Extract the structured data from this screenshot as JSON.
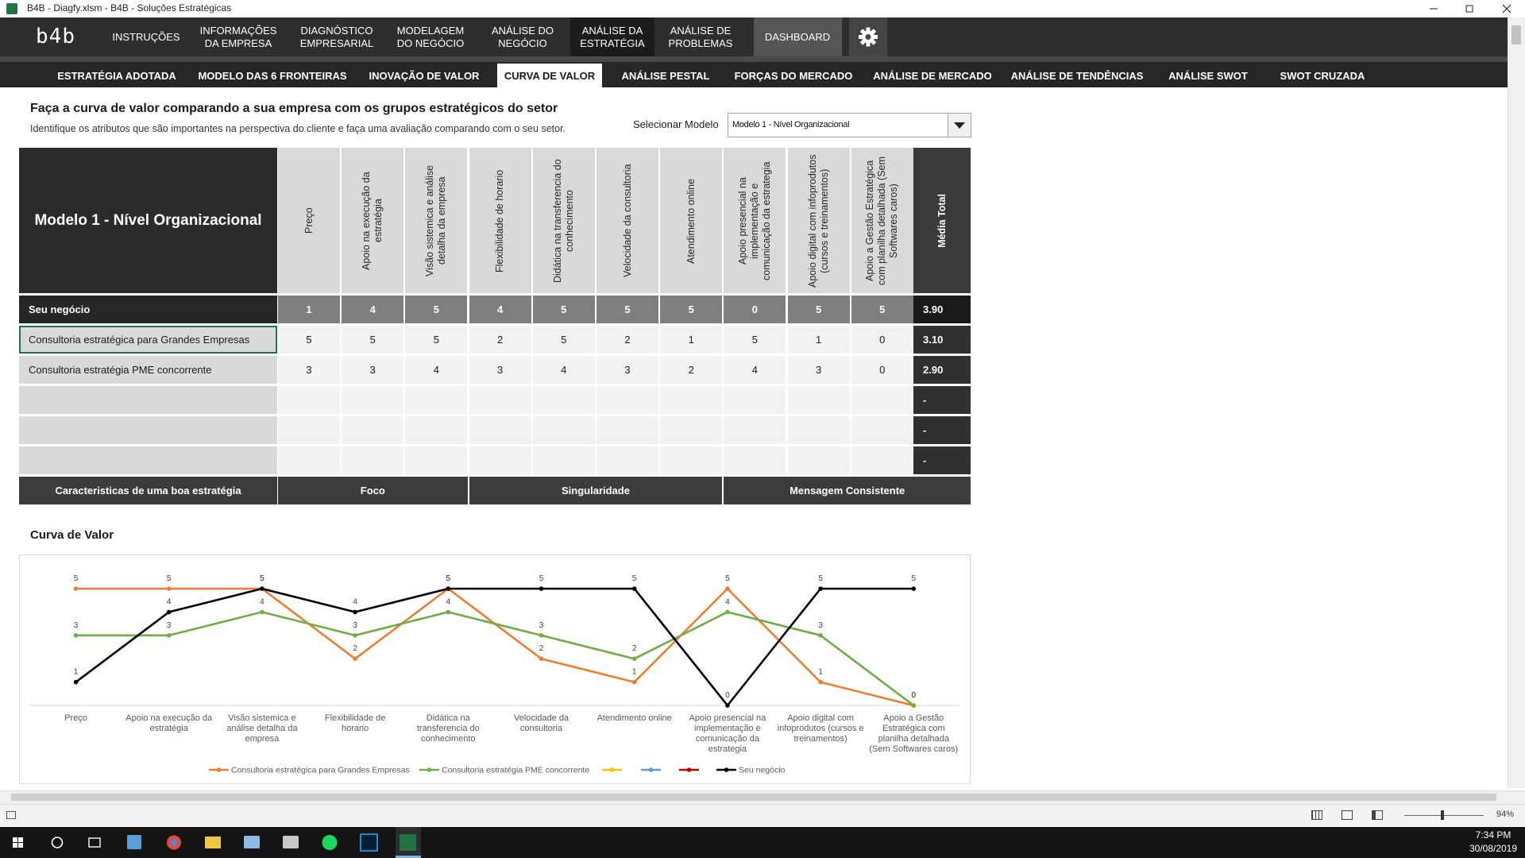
{
  "window": {
    "title": "B4B - Diagfy.xlsm - B4B - Soluções Estratégicas"
  },
  "nav": {
    "logo": "b4b",
    "items": [
      "INSTRUÇÕES",
      "INFORMAÇÕES DA EMPRESA",
      "DIAGNÓSTICO EMPRESARIAL",
      "MODELAGEM DO NEGÓCIO",
      "ANÁLISE DO NEGÓCIO",
      "ANÁLISE DA ESTRATÉGIA",
      "ANÁLISE DE PROBLEMAS",
      "DASHBOARD"
    ],
    "active": 5
  },
  "tabs": {
    "items": [
      "ESTRATÉGIA ADOTADA",
      "MODELO DAS 6 FRONTEIRAS",
      "INOVAÇÃO DE VALOR",
      "CURVA DE VALOR",
      "ANÁLISE PESTAL",
      "FORÇAS DO MERCADO",
      "ANÁLISE DE MERCADO",
      "ANÁLISE DE TENDÊNCIAS",
      "ANÁLISE SWOT",
      "SWOT CRUZADA"
    ],
    "active": 3
  },
  "header": {
    "title": "Faça a curva de valor comparando a sua empresa com os grupos estratégicos do setor",
    "subtitle": "Identifique os atributos que são importantes na perspectiva do cliente e faça uma avaliação comparando com o seu setor.",
    "selector_label": "Selecionar Modelo",
    "selector_value": "Modelo 1 - Nível Organizacional"
  },
  "table": {
    "title": "Modelo 1 - Nível Organizacional",
    "columns": [
      "Preço",
      "Apoio na execução da estratégia",
      "Visão sistemica e análise detalha da empresa",
      "Flexibilidade de horario",
      "Didática na transferencia do conhecimento",
      "Velocidade da consultoria",
      "Atendimento online",
      "Apoio presencial na implementação e comunicação da estrategia",
      "Apoio digital com infoprodutos (cursos e treinamentos)",
      "Apoio a Gestão Estratégica com planilha detalhada (Sem Softwares caros)"
    ],
    "total_header": "Média Total",
    "rows": [
      {
        "label": "Seu negócio",
        "values": [
          1,
          4,
          5,
          4,
          5,
          5,
          5,
          0,
          5,
          5
        ],
        "total": "3.90"
      },
      {
        "label": "Consultoria estratégica para Grandes Empresas",
        "values": [
          5,
          5,
          5,
          2,
          5,
          2,
          1,
          5,
          1,
          0
        ],
        "total": "3.10"
      },
      {
        "label": "Consultoria estratégia PME concorrente",
        "values": [
          3,
          3,
          4,
          3,
          4,
          3,
          2,
          4,
          3,
          0
        ],
        "total": "2.90"
      },
      {
        "total": "-"
      },
      {
        "total": "-"
      },
      {
        "total": "-"
      }
    ],
    "footer": {
      "label": "Caracteristicas de uma boa estratégia",
      "groups": [
        "Foco",
        "Singularidade",
        "Mensagem Consistente"
      ]
    }
  },
  "chart_data": {
    "type": "line",
    "title": "Curva de Valor",
    "categories": [
      "Preço",
      "Apoio na execução da estratégia",
      "Visão sistemica e análise detalha da empresa",
      "Flexibilidade de horario",
      "Didática na transferencia do conhecimento",
      "Velocidade da consultoria",
      "Atendimento online",
      "Apoio presencial na implementação e comunicação da estrategia",
      "Apoio digital com infoprodutos (cursos e treinamentos)",
      "Apoio a Gestão Estratégica com planilha detalhada (Sem Softwares caros)"
    ],
    "series": [
      {
        "name": "Consultoria estratégica para Grandes Empresas",
        "color": "#ed7d31",
        "values": [
          5,
          5,
          5,
          2,
          5,
          2,
          1,
          5,
          1,
          0
        ]
      },
      {
        "name": "Consultoria estratégia PME concorrente",
        "color": "#70ad47",
        "values": [
          3,
          3,
          4,
          3,
          4,
          3,
          2,
          4,
          3,
          0
        ]
      },
      {
        "color": "#ffc000",
        "values": [
          null,
          null,
          null,
          null,
          null,
          null,
          null,
          null,
          null,
          null
        ]
      },
      {
        "color": "#5b9bd5",
        "values": [
          null,
          null,
          null,
          null,
          null,
          null,
          null,
          null,
          null,
          null
        ]
      },
      {
        "color": "#c00000",
        "values": [
          null,
          null,
          null,
          null,
          null,
          null,
          null,
          null,
          null,
          null
        ]
      },
      {
        "name": "Seu negócio",
        "color": "#000000",
        "values": [
          1,
          4,
          5,
          4,
          5,
          5,
          5,
          0,
          5,
          5
        ]
      }
    ],
    "ylim": [
      0,
      5
    ],
    "data_labels": true,
    "legend": "bottom"
  },
  "status": {
    "zoom": "94%"
  },
  "taskbar": {
    "time": "7:34 PM",
    "date": "30/08/2019"
  }
}
